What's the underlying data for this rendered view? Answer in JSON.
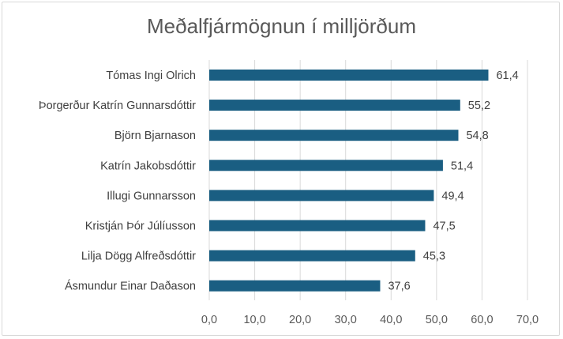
{
  "chart_data": {
    "type": "bar",
    "orientation": "horizontal",
    "title": "Meðalfjármögnun í milljörðum",
    "categories": [
      "Tómas Ingi Olrich",
      "Þorgerður Katrín Gunnarsdóttir",
      "Björn Bjarnason",
      "Katrín Jakobsdóttir",
      "Illugi Gunnarsson",
      "Kristján Þór Júlíusson",
      "Lilja Dögg Alfreðsdóttir",
      "Ásmundur Einar Daðason"
    ],
    "values": [
      61.4,
      55.2,
      54.8,
      51.4,
      49.4,
      47.5,
      45.3,
      37.6
    ],
    "value_labels": [
      "61,4",
      "55,2",
      "54,8",
      "51,4",
      "49,4",
      "47,5",
      "45,3",
      "37,6"
    ],
    "x_ticks": [
      "0,0",
      "10,0",
      "20,0",
      "30,0",
      "40,0",
      "50,0",
      "60,0",
      "70,0"
    ],
    "xlim": [
      0,
      70
    ],
    "xlabel": "",
    "ylabel": "",
    "grid": "vertical",
    "legend": "none",
    "colors": {
      "bar": "#1a5e82",
      "grid": "#d9d9d9",
      "text": "#404040"
    }
  }
}
